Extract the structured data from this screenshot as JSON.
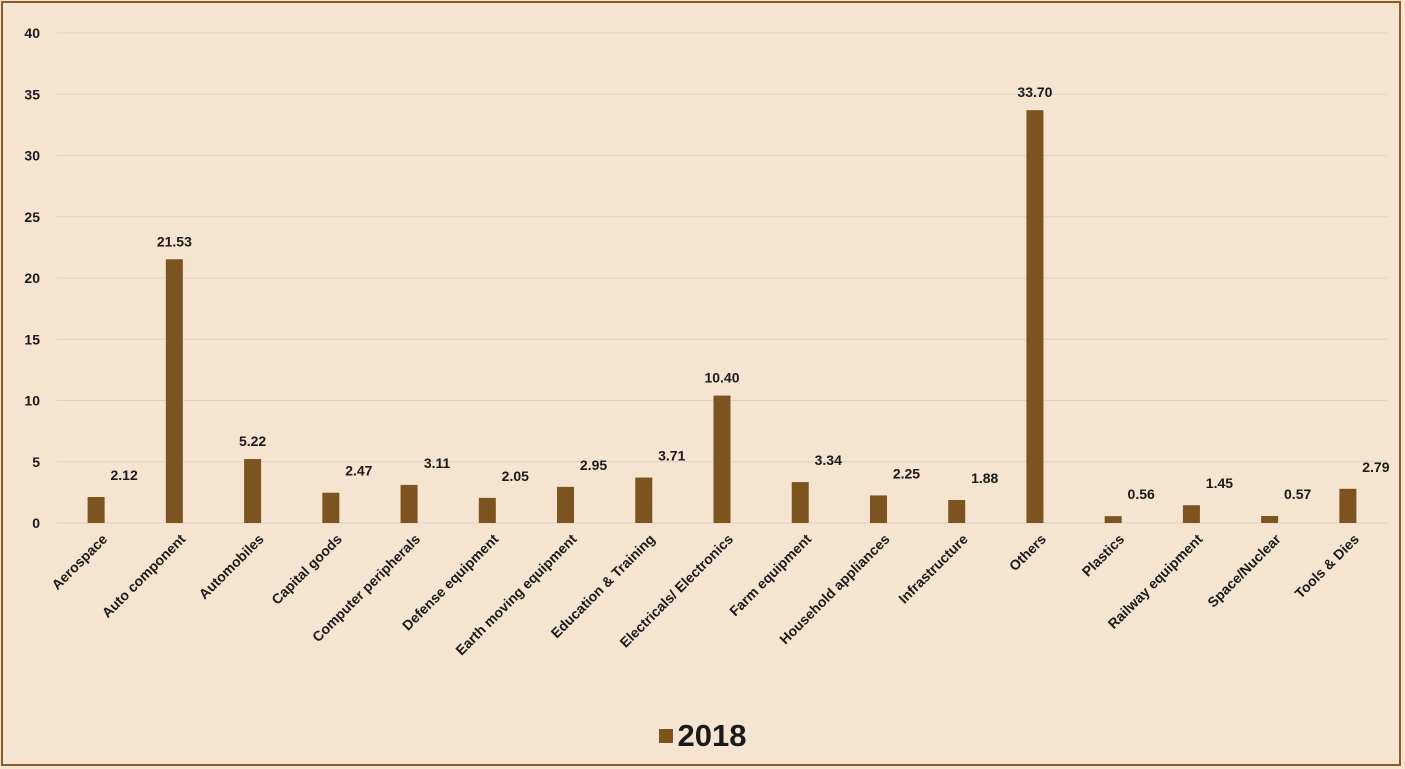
{
  "colors": {
    "background": "#f5e4d0",
    "bar": "#7d5320",
    "grid": "#d9d2cb",
    "border": "#8b5a2b"
  },
  "chart_data": {
    "type": "bar",
    "categories": [
      "Aerospace",
      "Auto component",
      "Automobiles",
      "Capital goods",
      "Computer peripherals",
      "Defense equipment",
      "Earth moving equipment",
      "Education & Training",
      "Electricals/ Electronics",
      "Farm equipment",
      "Household appliances",
      "Infrastructure",
      "Others",
      "Plastics",
      "Railway equipment",
      "Space/Nuclear",
      "Tools & Dies"
    ],
    "series": [
      {
        "name": "2018",
        "values": [
          2.12,
          21.53,
          5.22,
          2.47,
          3.11,
          2.05,
          2.95,
          3.71,
          10.4,
          3.34,
          2.25,
          1.88,
          33.7,
          0.56,
          1.45,
          0.57,
          2.79
        ]
      }
    ],
    "data_labels": [
      "2.12",
      "21.53",
      "5.22",
      "2.47",
      "3.11",
      "2.05",
      "2.95",
      "3.71",
      "10.40",
      "3.34",
      "2.25",
      "1.88",
      "33.70",
      "0.56",
      "1.45",
      "0.57",
      "2.79"
    ],
    "yticks": [
      "0",
      "5",
      "10",
      "15",
      "20",
      "25",
      "30",
      "35",
      "40"
    ],
    "ylim": [
      0,
      40
    ],
    "grid": true,
    "legend_position": "bottom",
    "legend_label": "2018"
  }
}
